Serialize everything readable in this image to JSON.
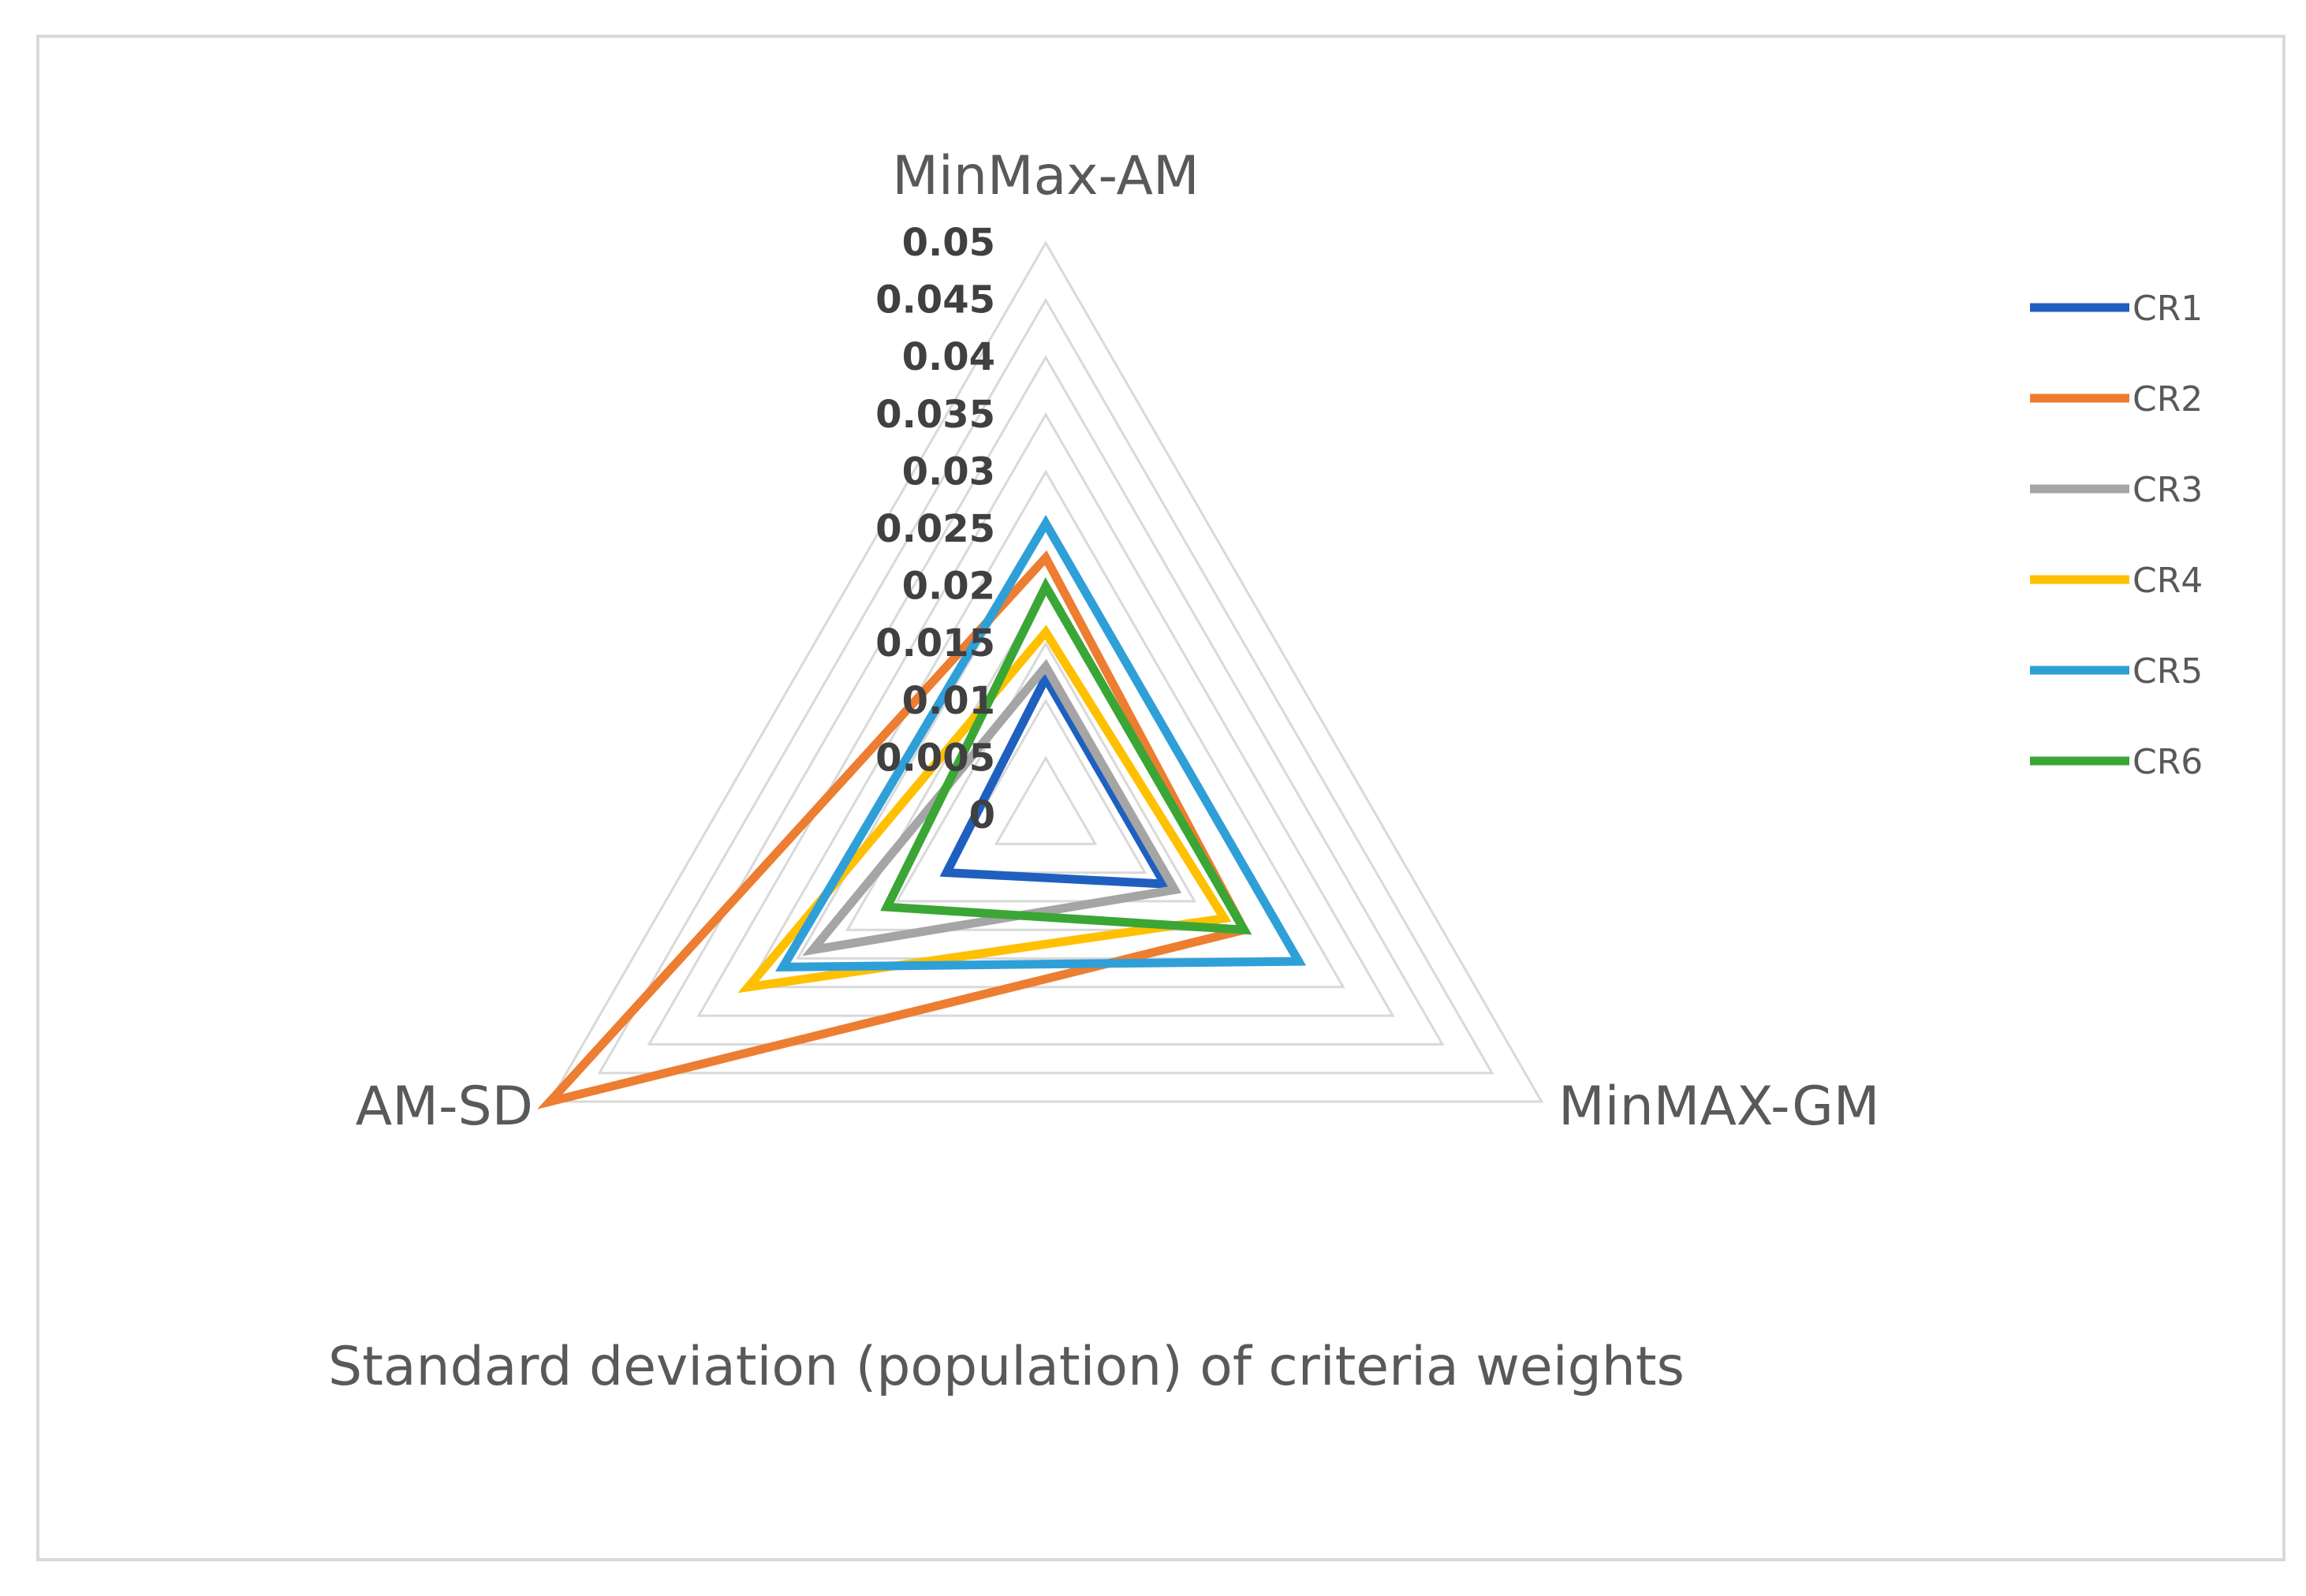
{
  "chart_data": {
    "type": "radar",
    "title": "Standard deviation (population) of criteria weights",
    "axes": [
      "MinMax-AM",
      "MinMAX-GM",
      "AM-SD"
    ],
    "rlim": [
      0,
      0.05
    ],
    "ticks": [
      "0",
      "0.005",
      "0.01",
      "0.015",
      "0.02",
      "0.025",
      "0.03",
      "0.035",
      "0.04",
      "0.045",
      "0.05"
    ],
    "grid": true,
    "legend_position": "right",
    "series": [
      {
        "name": "CR1",
        "color": "#1f5fbf",
        "values": [
          0.012,
          0.012,
          0.01
        ]
      },
      {
        "name": "CR2",
        "color": "#ed7d31",
        "values": [
          0.0225,
          0.02,
          0.05
        ]
      },
      {
        "name": "CR3",
        "color": "#a5a5a5",
        "values": [
          0.013,
          0.013,
          0.0235
        ]
      },
      {
        "name": "CR4",
        "color": "#ffc000",
        "values": [
          0.016,
          0.018,
          0.03
        ]
      },
      {
        "name": "CR5",
        "color": "#2f9fd8",
        "values": [
          0.0255,
          0.0255,
          0.0265
        ]
      },
      {
        "name": "CR6",
        "color": "#3aa635",
        "values": [
          0.02,
          0.02,
          0.016
        ]
      }
    ]
  }
}
